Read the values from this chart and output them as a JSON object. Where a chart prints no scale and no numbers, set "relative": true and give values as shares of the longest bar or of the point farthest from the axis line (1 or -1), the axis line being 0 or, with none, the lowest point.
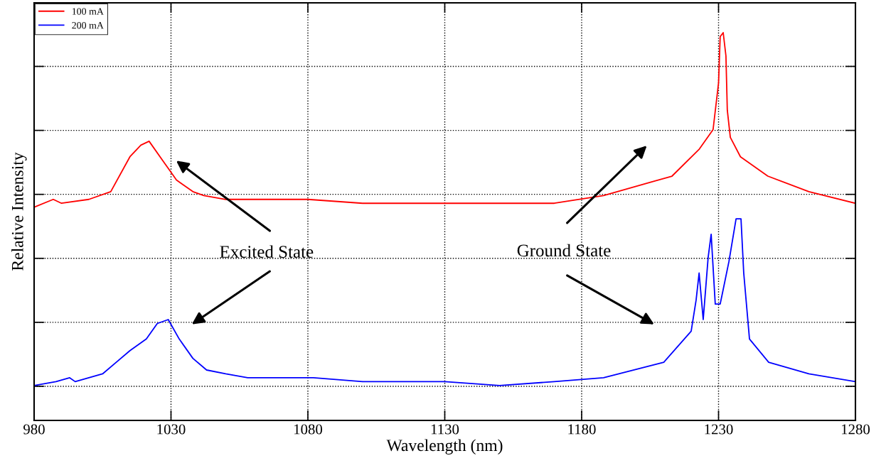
{
  "chart_data": {
    "type": "line",
    "relative": true,
    "xlabel": "Wavelength (nm)",
    "ylabel": "Relative Intensity",
    "xlim": [
      980,
      1280
    ],
    "xticks": [
      980,
      1030,
      1080,
      1130,
      1180,
      1230,
      1280
    ],
    "tick_labels": "x",
    "grid": true,
    "legend": "top left",
    "line_style": "solid",
    "marker": "none",
    "annotations": [
      "Excited State",
      "Ground State"
    ],
    "series": [
      {
        "name": "100 mA",
        "color": "#ff0000",
        "x": [
          980,
          987,
          990,
          1000,
          1008,
          1015,
          1019,
          1022,
          1027,
          1030,
          1032,
          1034,
          1038,
          1042,
          1050,
          1080,
          1100,
          1120,
          1150,
          1170,
          1188,
          1213,
          1223,
          1228,
          1230,
          1230.6,
          1231.7,
          1232.7,
          1233.2,
          1234.3,
          1238,
          1248,
          1263,
          1280
        ],
        "values": [
          0.55,
          0.57,
          0.56,
          0.57,
          0.59,
          0.68,
          0.71,
          0.72,
          0.67,
          0.64,
          0.62,
          0.61,
          0.59,
          0.58,
          0.57,
          0.57,
          0.56,
          0.56,
          0.56,
          0.56,
          0.58,
          0.63,
          0.7,
          0.75,
          0.87,
          0.99,
          1.0,
          0.94,
          0.8,
          0.73,
          0.68,
          0.63,
          0.59,
          0.56
        ]
      },
      {
        "name": "200 mA",
        "color": "#0000ff",
        "x": [
          980,
          988,
          993,
          995,
          1005,
          1010,
          1015,
          1021,
          1025,
          1029,
          1033,
          1038,
          1043,
          1050,
          1058,
          1072,
          1082,
          1100,
          1130,
          1150,
          1170,
          1188,
          1210,
          1220,
          1221.8,
          1222.9,
          1224.4,
          1226.2,
          1227.3,
          1228.8,
          1230.6,
          1233.8,
          1236.4,
          1238.2,
          1239.2,
          1241.3,
          1248.3,
          1263,
          1280
        ],
        "values": [
          0.09,
          0.1,
          0.11,
          0.1,
          0.12,
          0.15,
          0.18,
          0.21,
          0.25,
          0.26,
          0.21,
          0.16,
          0.13,
          0.12,
          0.11,
          0.11,
          0.11,
          0.1,
          0.1,
          0.09,
          0.1,
          0.11,
          0.15,
          0.23,
          0.31,
          0.38,
          0.26,
          0.42,
          0.48,
          0.3,
          0.3,
          0.41,
          0.52,
          0.52,
          0.38,
          0.21,
          0.15,
          0.12,
          0.1
        ]
      }
    ]
  }
}
